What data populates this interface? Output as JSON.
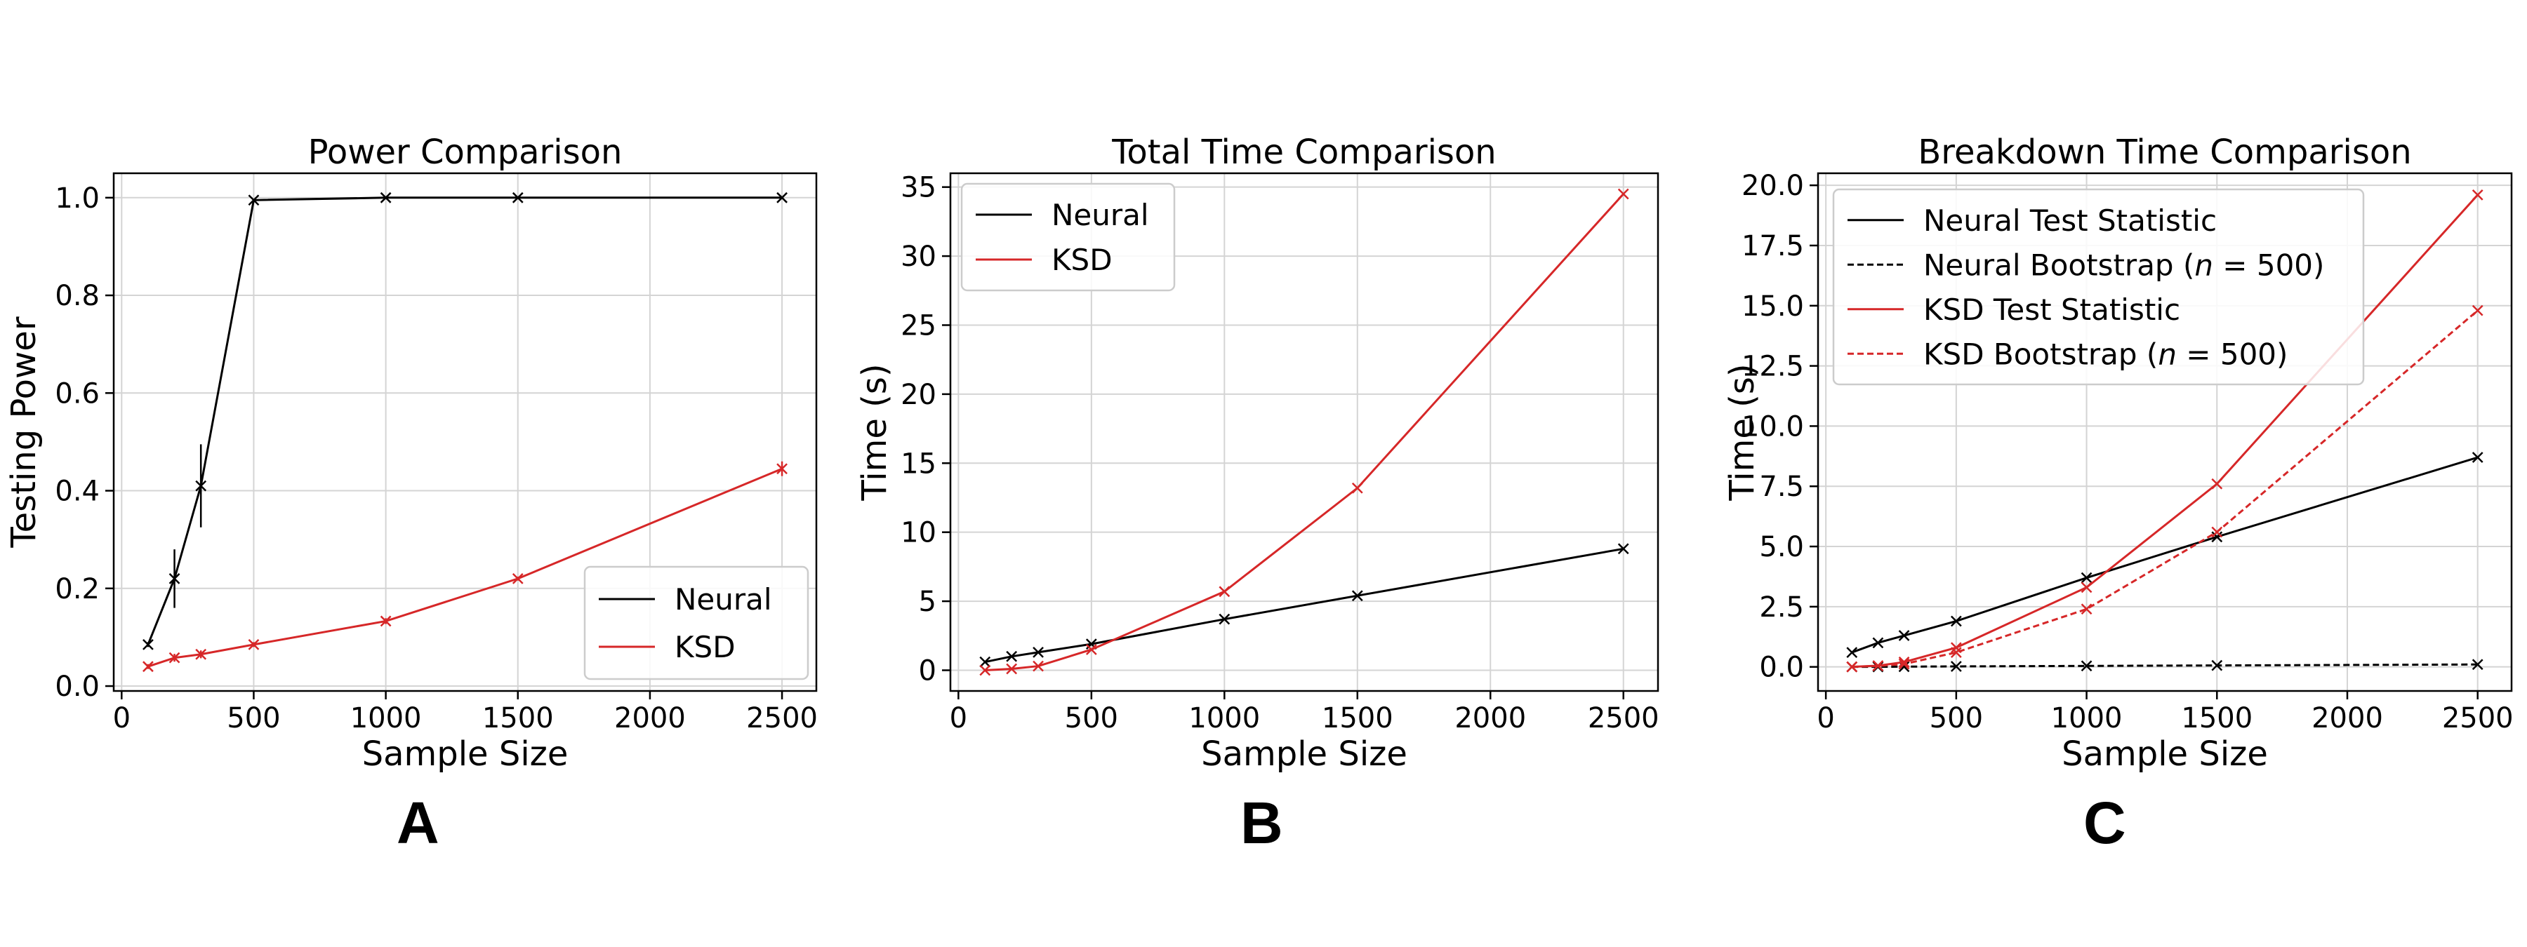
{
  "panel_letters": [
    "A",
    "B",
    "C"
  ],
  "chart_data": [
    {
      "type": "line",
      "title": "Power Comparison",
      "xlabel": "Sample Size",
      "ylabel": "Testing Power",
      "xlim": [
        -30,
        2630
      ],
      "ylim": [
        -0.01,
        1.05
      ],
      "xticks": [
        0,
        500,
        1000,
        1500,
        2000,
        2500
      ],
      "yticks": [
        0.0,
        0.2,
        0.4,
        0.6,
        0.8,
        1.0
      ],
      "ytick_labels": [
        "0.0",
        "0.2",
        "0.4",
        "0.6",
        "0.8",
        "1.0"
      ],
      "grid": true,
      "legend_position": "lower-right",
      "series": [
        {
          "name": "Neural",
          "color": "#000000",
          "dash": "solid",
          "x": [
            100,
            200,
            300,
            500,
            1000,
            1500,
            2500
          ],
          "y": [
            0.085,
            0.22,
            0.41,
            0.995,
            1.0,
            1.0,
            1.0
          ],
          "err": [
            0.005,
            0.06,
            0.085,
            0.003,
            0,
            0,
            0
          ]
        },
        {
          "name": "KSD",
          "color": "#d62728",
          "dash": "solid",
          "x": [
            100,
            200,
            300,
            500,
            1000,
            1500,
            2500
          ],
          "y": [
            0.04,
            0.058,
            0.065,
            0.085,
            0.133,
            0.22,
            0.445
          ],
          "err": [
            0.005,
            0.008,
            0.008,
            0.005,
            0.006,
            0.004,
            0.015
          ]
        }
      ]
    },
    {
      "type": "line",
      "title": "Total Time Comparison",
      "xlabel": "Sample Size",
      "ylabel": "Time (s)",
      "xlim": [
        -30,
        2630
      ],
      "ylim": [
        -1.5,
        36
      ],
      "xticks": [
        0,
        500,
        1000,
        1500,
        2000,
        2500
      ],
      "yticks": [
        0,
        5,
        10,
        15,
        20,
        25,
        30,
        35
      ],
      "ytick_labels": [
        "0",
        "5",
        "10",
        "15",
        "20",
        "25",
        "30",
        "35"
      ],
      "grid": true,
      "legend_position": "top-left",
      "series": [
        {
          "name": "Neural",
          "color": "#000000",
          "dash": "solid",
          "x": [
            100,
            200,
            300,
            500,
            1000,
            1500,
            2500
          ],
          "y": [
            0.6,
            1.0,
            1.3,
            1.9,
            3.7,
            5.4,
            8.8
          ]
        },
        {
          "name": "KSD",
          "color": "#d62728",
          "dash": "solid",
          "x": [
            100,
            200,
            300,
            500,
            1000,
            1500,
            2500
          ],
          "y": [
            0.0,
            0.1,
            0.3,
            1.5,
            5.7,
            13.2,
            34.5
          ]
        }
      ]
    },
    {
      "type": "line",
      "title": "Breakdown Time Comparison",
      "xlabel": "Sample Size",
      "ylabel": "Time (s)",
      "xlim": [
        -30,
        2630
      ],
      "ylim": [
        -1.0,
        20.5
      ],
      "xticks": [
        0,
        500,
        1000,
        1500,
        2000,
        2500
      ],
      "yticks": [
        0,
        2.5,
        5,
        7.5,
        10,
        12.5,
        15,
        17.5,
        20
      ],
      "ytick_labels": [
        "0.0",
        "2.5",
        "5.0",
        "7.5",
        "10.0",
        "12.5",
        "15.0",
        "17.5",
        "20.0"
      ],
      "grid": true,
      "legend_position": "top-left",
      "series": [
        {
          "name": "Neural Test Statistic",
          "color": "#000000",
          "dash": "solid",
          "x": [
            100,
            200,
            300,
            500,
            1000,
            1500,
            2500
          ],
          "y": [
            0.6,
            1.0,
            1.3,
            1.9,
            3.7,
            5.4,
            8.7
          ]
        },
        {
          "name": "Neural Bootstrap (n = 500)",
          "color": "#000000",
          "dash": "dashed",
          "x": [
            100,
            200,
            300,
            500,
            1000,
            1500,
            2500
          ],
          "y": [
            0.0,
            0.0,
            0.01,
            0.02,
            0.04,
            0.06,
            0.1
          ]
        },
        {
          "name": "KSD Test Statistic",
          "color": "#d62728",
          "dash": "solid",
          "x": [
            100,
            200,
            300,
            500,
            1000,
            1500,
            2500
          ],
          "y": [
            0.0,
            0.05,
            0.2,
            0.8,
            3.3,
            7.6,
            19.6
          ]
        },
        {
          "name": "KSD Bootstrap (n = 500)",
          "color": "#d62728",
          "dash": "dashed",
          "x": [
            100,
            200,
            300,
            500,
            1000,
            1500,
            2500
          ],
          "y": [
            0.0,
            0.04,
            0.12,
            0.6,
            2.4,
            5.6,
            14.8
          ]
        }
      ]
    }
  ]
}
